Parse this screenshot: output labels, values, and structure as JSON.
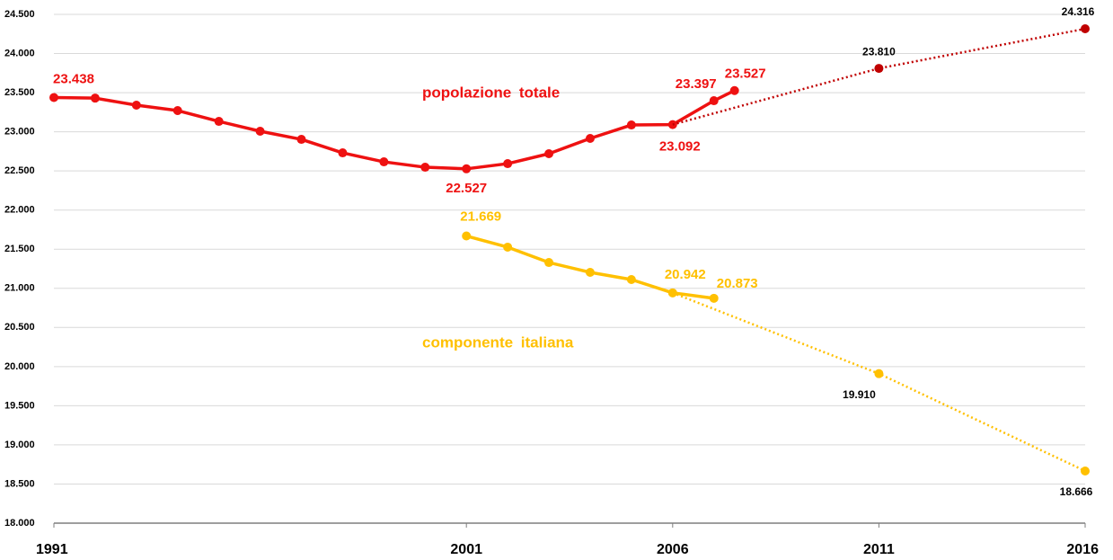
{
  "chart_data": {
    "type": "line",
    "annotations": [
      {
        "text": "popolazione totale",
        "color": "#ee1111"
      },
      {
        "text": "componente italiana",
        "color": "#ffc000"
      }
    ],
    "xlim": [
      1991,
      2016
    ],
    "xticks": [
      1991,
      2001,
      2006,
      2011,
      2016
    ],
    "ylim": [
      18000,
      24500
    ],
    "yticks": [
      {
        "value": 18000,
        "label": "18.000"
      },
      {
        "value": 18500,
        "label": "18.500"
      },
      {
        "value": 19000,
        "label": "19.000"
      },
      {
        "value": 19500,
        "label": "19.500"
      },
      {
        "value": 20000,
        "label": "20.000"
      },
      {
        "value": 20500,
        "label": "20.500"
      },
      {
        "value": 21000,
        "label": "21.000"
      },
      {
        "value": 21500,
        "label": "21.500"
      },
      {
        "value": 22000,
        "label": "22.000"
      },
      {
        "value": 22500,
        "label": "22.500"
      },
      {
        "value": 23000,
        "label": "23.000"
      },
      {
        "value": 23500,
        "label": "23.500"
      },
      {
        "value": 24000,
        "label": "24.000"
      },
      {
        "value": 24500,
        "label": "24.500"
      }
    ],
    "grid": true,
    "series": [
      {
        "color": "#ee1111",
        "style": "solid",
        "x": [
          1991,
          1992,
          1993,
          1994,
          1995,
          1996,
          1997,
          1998,
          1999,
          2000,
          2001,
          2002,
          2003,
          2004,
          2005,
          2006,
          2007,
          2007.5
        ],
        "values": [
          23438,
          23430,
          23340,
          23271,
          23133,
          23007,
          22903,
          22731,
          22616,
          22547,
          22527,
          22593,
          22720,
          22915,
          23087,
          23092,
          23397,
          23527
        ],
        "value_labels": [
          "23.438",
          null,
          null,
          null,
          null,
          null,
          null,
          null,
          null,
          null,
          "22.527",
          null,
          null,
          null,
          null,
          "23.092",
          "23.397",
          "23.527"
        ]
      },
      {
        "color": "#c00000",
        "style": "dotted",
        "x": [
          2006,
          2011,
          2016
        ],
        "values": [
          23092,
          23810,
          24316
        ],
        "value_labels": [
          null,
          "23.810",
          "24.316"
        ]
      },
      {
        "color": "#ffc000",
        "style": "solid",
        "x": [
          2001,
          2002,
          2003,
          2004,
          2005,
          2006,
          2007
        ],
        "values": [
          21669,
          21526,
          21330,
          21204,
          21112,
          20942,
          20873
        ],
        "value_labels": [
          "21.669",
          null,
          null,
          null,
          null,
          "20.942",
          "20.873"
        ]
      },
      {
        "color": "#ffc000",
        "style": "dotted",
        "x": [
          2006,
          2011,
          2016
        ],
        "values": [
          20942,
          19910,
          18666
        ],
        "value_labels": [
          null,
          "19.910",
          "18.666"
        ]
      }
    ]
  }
}
